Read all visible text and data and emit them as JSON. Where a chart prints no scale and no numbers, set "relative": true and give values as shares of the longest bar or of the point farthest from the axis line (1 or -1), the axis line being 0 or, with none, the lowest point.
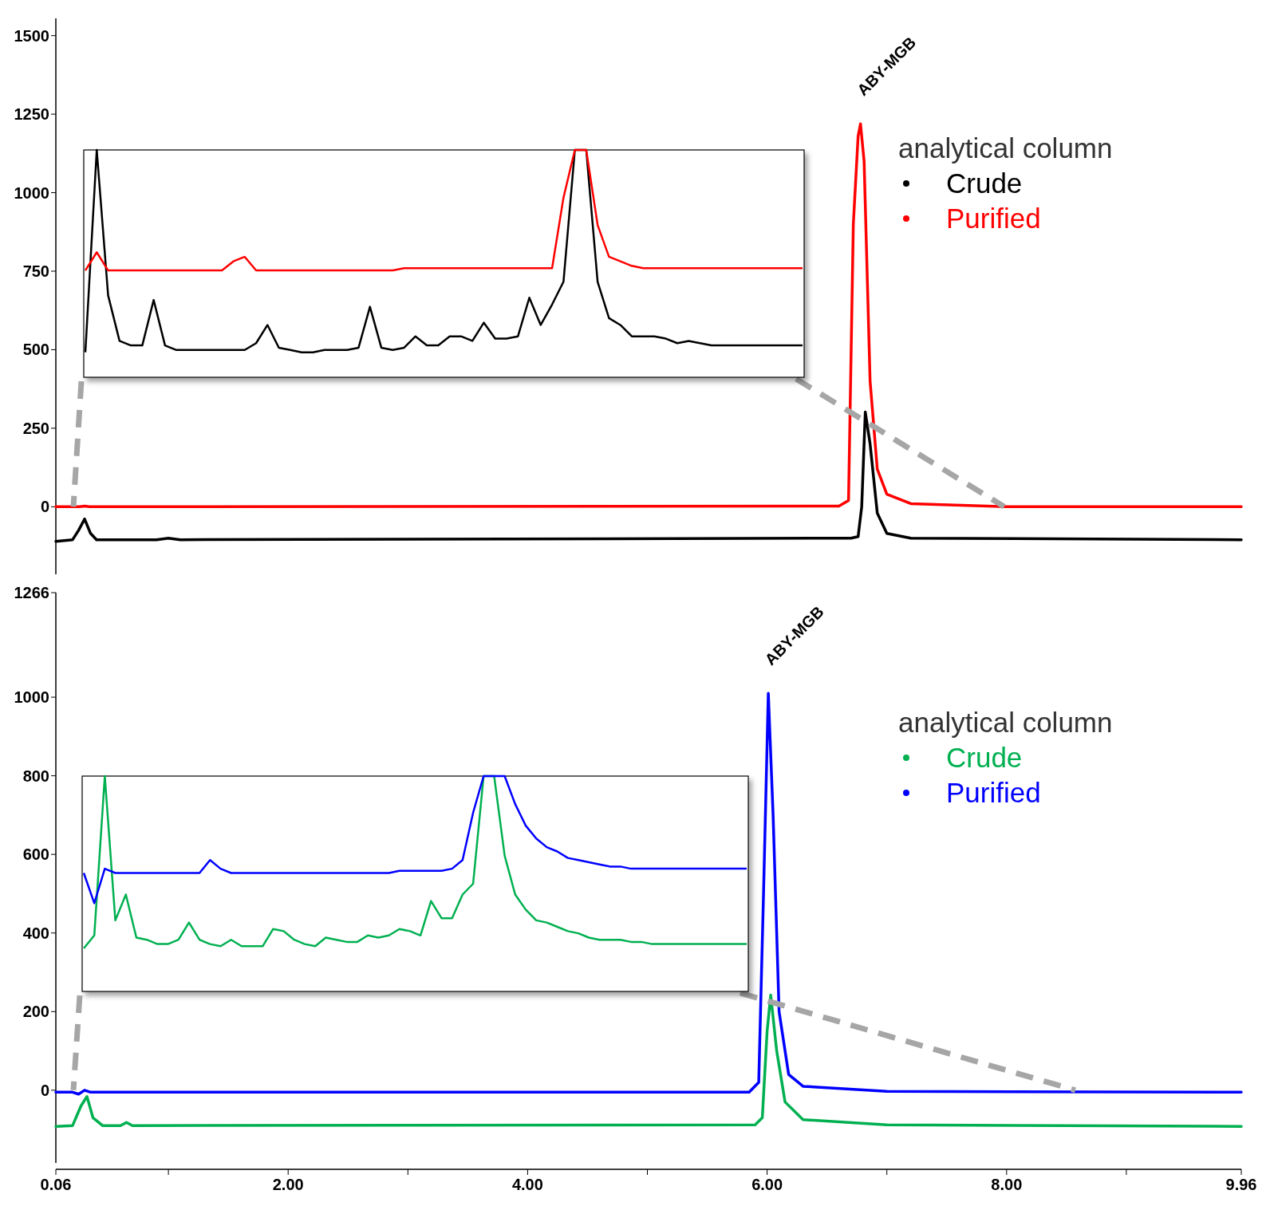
{
  "chart_data": [
    {
      "type": "line",
      "legend_title": "analytical column",
      "legend": "right",
      "tick_labels": "y",
      "xlim": [
        0.06,
        9.96
      ],
      "ylim": [
        -215,
        1555
      ],
      "yticks": [
        0,
        250,
        500,
        750,
        1000,
        1250,
        1500
      ],
      "annotations": [
        {
          "text": "ABY-MGB",
          "x": 6.78,
          "y": 1219
        }
      ],
      "series": [
        {
          "name": "Crude",
          "color": "#000000",
          "x": [
            0.06,
            0.2,
            0.25,
            0.3,
            0.35,
            0.4,
            0.9,
            1.0,
            1.1,
            6.7,
            6.76,
            6.79,
            6.82,
            6.86,
            6.92,
            7.0,
            7.2,
            9.96
          ],
          "values": [
            -110,
            -105,
            -75,
            -39,
            -85,
            -105,
            -105,
            -100,
            -105,
            -100,
            -95,
            0,
            302,
            200,
            -20,
            -85,
            -100,
            -105
          ]
        },
        {
          "name": "Purified",
          "color": "#ff0000",
          "x": [
            0.06,
            0.26,
            0.3,
            0.34,
            6.6,
            6.68,
            6.72,
            6.76,
            6.78,
            6.81,
            6.86,
            6.92,
            7.0,
            7.2,
            8.0,
            9.96
          ],
          "values": [
            0,
            0,
            2,
            0,
            2,
            20,
            900,
            1180,
            1219,
            1100,
            400,
            120,
            40,
            10,
            0,
            0
          ]
        }
      ]
    },
    {
      "type": "line",
      "relative": true,
      "categories": [
        null,
        null,
        null,
        null,
        null,
        null,
        null,
        null,
        null,
        null,
        null,
        null,
        null,
        null,
        null,
        null,
        null,
        null,
        null,
        null,
        null,
        null,
        null,
        null,
        null,
        null,
        null,
        null,
        null,
        null,
        null,
        null,
        null,
        null,
        null,
        null,
        null,
        null,
        null,
        null,
        null,
        null,
        null,
        null,
        null,
        null,
        null,
        null,
        null,
        null,
        null,
        null,
        null,
        null,
        null,
        null,
        null,
        null,
        null,
        null,
        null,
        null,
        null,
        null
      ],
      "series": [
        {
          "color": "#000000",
          "values": [
            0.11,
            1,
            0.36,
            0.16,
            0.14,
            0.14,
            0.34,
            0.14,
            0.12,
            0.12,
            0.12,
            0.12,
            0.12,
            0.12,
            0.12,
            0.15,
            0.23,
            0.13,
            0.12,
            0.11,
            0.11,
            0.12,
            0.12,
            0.12,
            0.13,
            0.31,
            0.13,
            0.12,
            0.13,
            0.18,
            0.14,
            0.14,
            0.18,
            0.18,
            0.16,
            0.24,
            0.17,
            0.17,
            0.18,
            0.35,
            0.23,
            0.32,
            0.42,
            1,
            1,
            0.42,
            0.26,
            0.23,
            0.18,
            0.18,
            0.18,
            0.17,
            0.15,
            0.16,
            0.15,
            0.14,
            0.14,
            0.14,
            0.14,
            0.14,
            0.14,
            0.14,
            0.14,
            0.14
          ]
        },
        {
          "color": "#ff0000",
          "values": [
            0.47,
            0.55,
            0.47,
            0.47,
            0.47,
            0.47,
            0.47,
            0.47,
            0.47,
            0.47,
            0.47,
            0.47,
            0.47,
            0.51,
            0.53,
            0.47,
            0.47,
            0.47,
            0.47,
            0.47,
            0.47,
            0.47,
            0.47,
            0.47,
            0.47,
            0.47,
            0.47,
            0.47,
            0.48,
            0.48,
            0.48,
            0.48,
            0.48,
            0.48,
            0.48,
            0.48,
            0.48,
            0.48,
            0.48,
            0.48,
            0.48,
            0.48,
            0.79,
            1,
            1,
            0.67,
            0.53,
            0.51,
            0.49,
            0.48,
            0.48,
            0.48,
            0.48,
            0.48,
            0.48,
            0.48,
            0.48,
            0.48,
            0.48,
            0.48,
            0.48,
            0.48,
            0.48,
            0.48
          ]
        }
      ]
    },
    {
      "type": "line",
      "legend_title": "analytical column",
      "legend": "right",
      "xlim": [
        0.06,
        9.96
      ],
      "xticks": [
        {
          "value": 0.06,
          "label": "0.06"
        },
        {
          "value": 1,
          "label": null
        },
        {
          "value": 2,
          "label": "2.00"
        },
        {
          "value": 3,
          "label": null
        },
        {
          "value": 4,
          "label": "4.00"
        },
        {
          "value": 5,
          "label": null
        },
        {
          "value": 6,
          "label": "6.00"
        },
        {
          "value": 7,
          "label": null
        },
        {
          "value": 8,
          "label": "8.00"
        },
        {
          "value": 9,
          "label": null
        },
        {
          "value": 9.96,
          "label": "9.96"
        }
      ],
      "ylim": [
        -185,
        1266
      ],
      "yticks": [
        0,
        200,
        400,
        600,
        800,
        1000,
        1266
      ],
      "annotations": [
        {
          "text": "ABY-MGB",
          "x": 6.01,
          "y": 1010
        }
      ],
      "series": [
        {
          "name": "Crude",
          "color": "#00b050",
          "x": [
            0.06,
            0.2,
            0.27,
            0.32,
            0.37,
            0.45,
            0.6,
            0.65,
            0.7,
            5.9,
            5.96,
            6.0,
            6.03,
            6.08,
            6.15,
            6.3,
            7.0,
            9.96
          ],
          "values": [
            -92,
            -90,
            -40,
            -16,
            -70,
            -90,
            -90,
            -82,
            -90,
            -88,
            -70,
            150,
            242,
            100,
            -30,
            -75,
            -88,
            -92
          ]
        },
        {
          "name": "Purified",
          "color": "#0000ff",
          "x": [
            0.06,
            0.2,
            0.25,
            0.3,
            0.35,
            5.85,
            5.93,
            5.97,
            6.01,
            6.05,
            6.1,
            6.18,
            6.3,
            7.0,
            9.96
          ],
          "values": [
            -5,
            -5,
            -10,
            0,
            -5,
            -5,
            20,
            500,
            1010,
            700,
            200,
            40,
            10,
            -3,
            -5
          ]
        }
      ]
    },
    {
      "type": "line",
      "relative": true,
      "categories": [
        null,
        null,
        null,
        null,
        null,
        null,
        null,
        null,
        null,
        null,
        null,
        null,
        null,
        null,
        null,
        null,
        null,
        null,
        null,
        null,
        null,
        null,
        null,
        null,
        null,
        null,
        null,
        null,
        null,
        null,
        null,
        null,
        null,
        null,
        null,
        null,
        null,
        null,
        null,
        null,
        null,
        null,
        null,
        null,
        null,
        null,
        null,
        null,
        null,
        null,
        null,
        null,
        null,
        null,
        null,
        null,
        null,
        null,
        null,
        null,
        null,
        null,
        null,
        null
      ],
      "series": [
        {
          "color": "#00b050",
          "values": [
            0.2,
            0.26,
            1,
            0.33,
            0.45,
            0.25,
            0.24,
            0.22,
            0.22,
            0.24,
            0.32,
            0.24,
            0.22,
            0.21,
            0.24,
            0.21,
            0.21,
            0.21,
            0.29,
            0.28,
            0.24,
            0.22,
            0.21,
            0.25,
            0.24,
            0.23,
            0.23,
            0.26,
            0.25,
            0.26,
            0.29,
            0.28,
            0.26,
            0.42,
            0.34,
            0.34,
            0.45,
            0.5,
            1,
            1,
            0.63,
            0.45,
            0.38,
            0.33,
            0.32,
            0.3,
            0.28,
            0.27,
            0.25,
            0.24,
            0.24,
            0.24,
            0.23,
            0.23,
            0.22,
            0.22,
            0.22,
            0.22,
            0.22,
            0.22,
            0.22,
            0.22,
            0.22,
            0.22
          ]
        },
        {
          "color": "#0000ff",
          "values": [
            0.55,
            0.41,
            0.57,
            0.55,
            0.55,
            0.55,
            0.55,
            0.55,
            0.55,
            0.55,
            0.55,
            0.55,
            0.61,
            0.57,
            0.55,
            0.55,
            0.55,
            0.55,
            0.55,
            0.55,
            0.55,
            0.55,
            0.55,
            0.55,
            0.55,
            0.55,
            0.55,
            0.55,
            0.55,
            0.55,
            0.56,
            0.56,
            0.56,
            0.56,
            0.56,
            0.57,
            0.61,
            0.83,
            1,
            1,
            1,
            0.87,
            0.77,
            0.71,
            0.67,
            0.65,
            0.62,
            0.61,
            0.6,
            0.59,
            0.58,
            0.58,
            0.57,
            0.57,
            0.57,
            0.57,
            0.57,
            0.57,
            0.57,
            0.57,
            0.57,
            0.57,
            0.57,
            0.57
          ]
        }
      ]
    }
  ]
}
